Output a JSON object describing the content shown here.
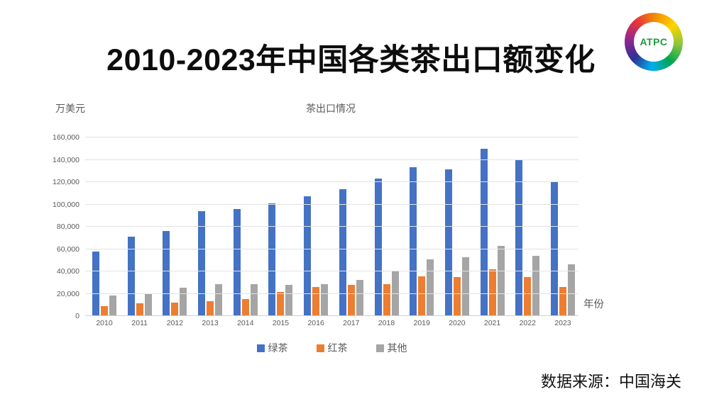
{
  "page": {
    "title": "2010-2023年中国各类茶出口额变化",
    "source_note": "数据来源：中国海关"
  },
  "logo": {
    "label": "ATPC"
  },
  "chart_data": {
    "type": "bar",
    "title": "茶出口情况",
    "y_unit_label": "万美元",
    "xlabel": "年份",
    "ylabel": "万美元",
    "categories": [
      "2010",
      "2011",
      "2012",
      "2013",
      "2014",
      "2015",
      "2016",
      "2017",
      "2018",
      "2019",
      "2020",
      "2021",
      "2022",
      "2023"
    ],
    "series": [
      {
        "name": "绿茶",
        "color": "#4472C4",
        "values": [
          57000,
          70500,
          75500,
          93500,
          95500,
          100500,
          106500,
          113000,
          122500,
          132500,
          130500,
          149000,
          139500,
          119500
        ]
      },
      {
        "name": "红茶",
        "color": "#ED7D31",
        "values": [
          8000,
          10500,
          11500,
          12500,
          14500,
          21000,
          25500,
          27500,
          28000,
          35000,
          34000,
          41000,
          34000,
          25500
        ]
      },
      {
        "name": "其他",
        "color": "#A5A5A5",
        "values": [
          17500,
          20000,
          24500,
          28000,
          28000,
          27500,
          28000,
          31500,
          40000,
          50000,
          52000,
          62500,
          53500,
          46000
        ]
      }
    ],
    "ylim": [
      0,
      160000
    ],
    "ytick_step": 20000,
    "yticks": [
      "0",
      "20,000",
      "40,000",
      "60,000",
      "80,000",
      "100,000",
      "120,000",
      "140,000",
      "160,000"
    ],
    "grid": true,
    "legend_position": "bottom",
    "gridline_color": "#e2e2e2"
  }
}
